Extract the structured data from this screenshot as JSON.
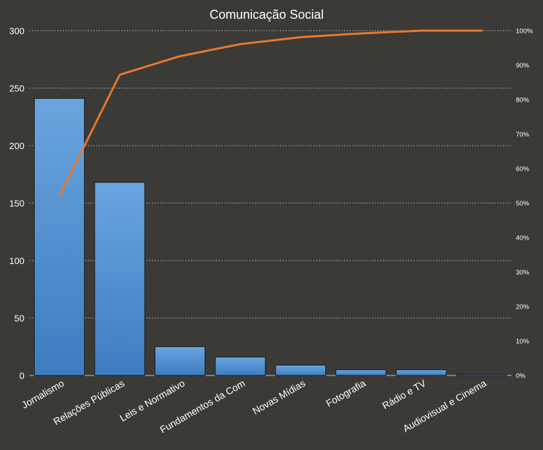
{
  "chart_data": {
    "type": "bar",
    "title": "Comunicação Social",
    "categories": [
      "Jornalismo",
      "Relações Públicas",
      "Leis e Normativo",
      "Fundamentos  da Com",
      "Novas Mídias",
      "Fotografia",
      "Rádio e TV",
      "Audiovisual e Cinema"
    ],
    "series": [
      {
        "type": "bar",
        "axis": "left",
        "values": [
          241,
          168,
          25,
          16,
          9,
          5,
          5,
          1
        ]
      },
      {
        "type": "line",
        "axis": "right",
        "values": [
          0.52,
          0.872,
          0.926,
          0.961,
          0.981,
          0.992,
          1.0,
          1.0
        ]
      }
    ],
    "y_left": {
      "min": 0,
      "max": 300,
      "ticks": [
        "0",
        "50",
        "100",
        "150",
        "200",
        "250",
        "300"
      ]
    },
    "y_right": {
      "min": 0,
      "max": 1,
      "ticks": [
        "0%",
        "10%",
        "20%",
        "30%",
        "40%",
        "50%",
        "60%",
        "70%",
        "80%",
        "90%",
        "100%"
      ]
    },
    "grid": true,
    "legend": "none",
    "colors": {
      "background": "#3b3a37",
      "bar_top": "#6aa5df",
      "bar_bottom": "#3d7cc0",
      "line": "#e8782f",
      "text": "#ffffff",
      "grid": "#bdbdbd"
    }
  }
}
